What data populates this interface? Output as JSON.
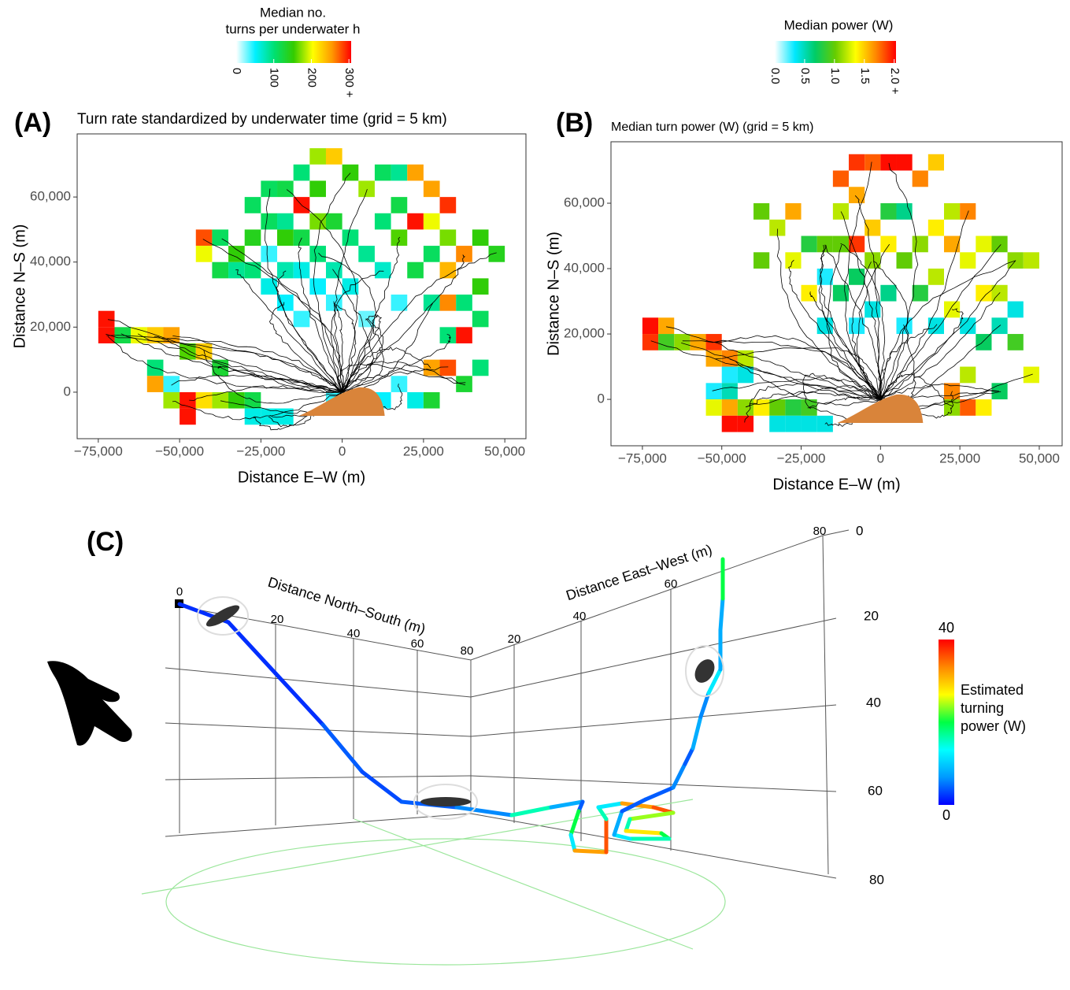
{
  "chart_data": [
    {
      "type": "heatmap",
      "panel_label": "(A)",
      "title": "Turn rate standardized by underwater time (grid = 5 km)",
      "xlabel": "Distance E–W (m)",
      "ylabel": "Distance N–S (m)",
      "xlim": [
        -81500,
        56500
      ],
      "ylim": [
        -14300,
        79400
      ],
      "xticks": [
        {
          "value": -75000,
          "label": "−75,000"
        },
        {
          "value": -50000,
          "label": "−50,000"
        },
        {
          "value": -25000,
          "label": "−25,000"
        },
        0,
        {
          "value": 25000,
          "label": "25,000"
        },
        {
          "value": 50000,
          "label": "50,000"
        }
      ],
      "yticks": [
        0,
        {
          "value": 20000,
          "label": "20,000"
        },
        {
          "value": 40000,
          "label": "40,000"
        },
        {
          "value": 60000,
          "label": "60,000"
        }
      ],
      "cell_size": 5000,
      "cells": [
        [
          -75000,
          15000,
          300
        ],
        [
          -75000,
          20000,
          300
        ],
        [
          -70000,
          15000,
          120
        ],
        [
          -65000,
          15000,
          200
        ],
        [
          -60000,
          15000,
          230
        ],
        [
          -55000,
          15000,
          250
        ],
        [
          -50000,
          10000,
          160
        ],
        [
          -45000,
          10000,
          230
        ],
        [
          -40000,
          5000,
          130
        ],
        [
          -60000,
          5000,
          100
        ],
        [
          -55000,
          0,
          40
        ],
        [
          -60000,
          0,
          250
        ],
        [
          -55000,
          -5000,
          180
        ],
        [
          -50000,
          -10000,
          300
        ],
        [
          -50000,
          -5000,
          300
        ],
        [
          -45000,
          -5000,
          220
        ],
        [
          -40000,
          -5000,
          180
        ],
        [
          -35000,
          -5000,
          150
        ],
        [
          -30000,
          -5000,
          120
        ],
        [
          -25000,
          -10000,
          60
        ],
        [
          -30000,
          -10000,
          60
        ],
        [
          -20000,
          -10000,
          60
        ],
        [
          -45000,
          45000,
          280
        ],
        [
          -45000,
          40000,
          200
        ],
        [
          -40000,
          45000,
          110
        ],
        [
          -40000,
          35000,
          120
        ],
        [
          -35000,
          35000,
          90
        ],
        [
          -35000,
          40000,
          150
        ],
        [
          -30000,
          55000,
          110
        ],
        [
          -30000,
          45000,
          140
        ],
        [
          -30000,
          35000,
          100
        ],
        [
          -25000,
          60000,
          110
        ],
        [
          -25000,
          50000,
          110
        ],
        [
          -25000,
          40000,
          40
        ],
        [
          -25000,
          30000,
          60
        ],
        [
          -20000,
          60000,
          120
        ],
        [
          -20000,
          50000,
          90
        ],
        [
          -20000,
          45000,
          150
        ],
        [
          -20000,
          35000,
          80
        ],
        [
          -20000,
          25000,
          50
        ],
        [
          -15000,
          65000,
          100
        ],
        [
          -15000,
          55000,
          300
        ],
        [
          -15000,
          45000,
          120
        ],
        [
          -15000,
          35000,
          60
        ],
        [
          -15000,
          20000,
          40
        ],
        [
          -10000,
          70000,
          180
        ],
        [
          -10000,
          60000,
          150
        ],
        [
          -10000,
          50000,
          170
        ],
        [
          -10000,
          40000,
          100
        ],
        [
          -10000,
          30000,
          50
        ],
        [
          -5000,
          70000,
          230
        ],
        [
          -5000,
          50000,
          130
        ],
        [
          -5000,
          35000,
          80
        ],
        [
          -5000,
          25000,
          40
        ],
        [
          0,
          65000,
          150
        ],
        [
          0,
          45000,
          100
        ],
        [
          0,
          30000,
          60
        ],
        [
          5000,
          60000,
          180
        ],
        [
          5000,
          40000,
          90
        ],
        [
          5000,
          20000,
          30
        ],
        [
          10000,
          65000,
          110
        ],
        [
          10000,
          50000,
          100
        ],
        [
          10000,
          35000,
          70
        ],
        [
          15000,
          65000,
          90
        ],
        [
          15000,
          55000,
          120
        ],
        [
          15000,
          45000,
          160
        ],
        [
          15000,
          25000,
          40
        ],
        [
          15000,
          0,
          40
        ],
        [
          20000,
          65000,
          250
        ],
        [
          20000,
          50000,
          300
        ],
        [
          20000,
          35000,
          120
        ],
        [
          20000,
          -5000,
          60
        ],
        [
          25000,
          60000,
          250
        ],
        [
          25000,
          50000,
          200
        ],
        [
          25000,
          40000,
          110
        ],
        [
          25000,
          25000,
          90
        ],
        [
          25000,
          5000,
          250
        ],
        [
          25000,
          -5000,
          130
        ],
        [
          30000,
          55000,
          290
        ],
        [
          30000,
          45000,
          170
        ],
        [
          30000,
          35000,
          240
        ],
        [
          30000,
          25000,
          260
        ],
        [
          30000,
          15000,
          100
        ],
        [
          30000,
          5000,
          280
        ],
        [
          35000,
          40000,
          260
        ],
        [
          35000,
          25000,
          100
        ],
        [
          35000,
          15000,
          300
        ],
        [
          35000,
          0,
          130
        ],
        [
          40000,
          45000,
          150
        ],
        [
          40000,
          30000,
          150
        ],
        [
          40000,
          20000,
          110
        ],
        [
          45000,
          40000,
          140
        ],
        [
          40000,
          5000,
          100
        ],
        [
          10000,
          -5000,
          50
        ],
        [
          -5000,
          -5000,
          40
        ]
      ],
      "colorbar": {
        "title": [
          "Median no.",
          "turns per underwater h"
        ],
        "colors": [
          "#ffffff",
          "#00f0ff",
          "#00e070",
          "#33cc00",
          "#ffff00",
          "#ff9900",
          "#ff0000"
        ],
        "lim": [
          0,
          306
        ],
        "ticks": [
          0,
          100,
          200,
          {
            "value": 300,
            "label": "300 +"
          }
        ]
      }
    },
    {
      "type": "heatmap",
      "panel_label": "(B)",
      "title": "Median turn power (W) (grid = 5 km)",
      "xlabel": "Distance E–W (m)",
      "ylabel": "Distance N–S (m)",
      "xlim": [
        -84900,
        57200
      ],
      "ylim": [
        -14200,
        78800
      ],
      "xticks": [
        {
          "value": -75000,
          "label": "−75,000"
        },
        {
          "value": -50000,
          "label": "−50,000"
        },
        {
          "value": -25000,
          "label": "−25,000"
        },
        0,
        {
          "value": 25000,
          "label": "25,000"
        },
        {
          "value": 50000,
          "label": "50,000"
        }
      ],
      "yticks": [
        0,
        {
          "value": 20000,
          "label": "20,000"
        },
        {
          "value": 40000,
          "label": "40,000"
        },
        {
          "value": 60000,
          "label": "60,000"
        }
      ],
      "cell_size": 5000,
      "cells": [
        [
          -75000,
          20000,
          2.0
        ],
        [
          -75000,
          15000,
          1.9
        ],
        [
          -70000,
          20000,
          1.6
        ],
        [
          -70000,
          15000,
          0.9
        ],
        [
          -65000,
          15000,
          1.1
        ],
        [
          -60000,
          15000,
          1.6
        ],
        [
          -55000,
          15000,
          1.9
        ],
        [
          -55000,
          10000,
          1.6
        ],
        [
          -50000,
          10000,
          1.7
        ],
        [
          -45000,
          10000,
          1.2
        ],
        [
          -50000,
          5000,
          0.3
        ],
        [
          -45000,
          5000,
          0.4
        ],
        [
          -55000,
          0,
          0.3
        ],
        [
          -50000,
          0,
          0.5
        ],
        [
          -55000,
          -5000,
          1.3
        ],
        [
          -50000,
          -5000,
          1.6
        ],
        [
          -45000,
          -5000,
          1.1
        ],
        [
          -40000,
          -5000,
          1.4
        ],
        [
          -35000,
          -5000,
          1.0
        ],
        [
          -30000,
          -5000,
          0.8
        ],
        [
          -50000,
          -10000,
          2.0
        ],
        [
          -45000,
          -10000,
          2.0
        ],
        [
          -35000,
          -10000,
          0.4
        ],
        [
          -30000,
          -10000,
          0.4
        ],
        [
          -25000,
          -10000,
          0.4
        ],
        [
          -20000,
          -10000,
          0.4
        ],
        [
          -25000,
          -5000,
          0.9
        ],
        [
          -40000,
          55000,
          1.0
        ],
        [
          -35000,
          50000,
          1.2
        ],
        [
          -40000,
          40000,
          1.0
        ],
        [
          -30000,
          55000,
          1.6
        ],
        [
          -30000,
          40000,
          1.3
        ],
        [
          -25000,
          45000,
          0.8
        ],
        [
          -25000,
          30000,
          1.4
        ],
        [
          -20000,
          45000,
          1.0
        ],
        [
          -20000,
          35000,
          0.3
        ],
        [
          -20000,
          20000,
          0.4
        ],
        [
          -15000,
          65000,
          1.8
        ],
        [
          -15000,
          55000,
          1.2
        ],
        [
          -15000,
          45000,
          1.0
        ],
        [
          -15000,
          30000,
          0.7
        ],
        [
          -10000,
          70000,
          1.9
        ],
        [
          -10000,
          60000,
          1.6
        ],
        [
          -10000,
          45000,
          1.9
        ],
        [
          -10000,
          35000,
          0.7
        ],
        [
          -10000,
          20000,
          0.3
        ],
        [
          -5000,
          70000,
          1.8
        ],
        [
          -5000,
          50000,
          1.5
        ],
        [
          -5000,
          40000,
          1.1
        ],
        [
          -5000,
          25000,
          0.4
        ],
        [
          0,
          70000,
          2.0
        ],
        [
          0,
          55000,
          0.8
        ],
        [
          0,
          45000,
          1.4
        ],
        [
          0,
          30000,
          0.6
        ],
        [
          5000,
          70000,
          2.0
        ],
        [
          5000,
          55000,
          0.6
        ],
        [
          5000,
          40000,
          1.0
        ],
        [
          5000,
          20000,
          0.3
        ],
        [
          10000,
          65000,
          1.7
        ],
        [
          10000,
          45000,
          1.1
        ],
        [
          10000,
          30000,
          0.8
        ],
        [
          15000,
          70000,
          1.5
        ],
        [
          15000,
          50000,
          1.4
        ],
        [
          15000,
          35000,
          1.2
        ],
        [
          15000,
          20000,
          0.4
        ],
        [
          20000,
          55000,
          1.2
        ],
        [
          20000,
          45000,
          1.6
        ],
        [
          20000,
          25000,
          1.3
        ],
        [
          20000,
          0,
          1.7
        ],
        [
          20000,
          -5000,
          1.1
        ],
        [
          25000,
          55000,
          1.7
        ],
        [
          25000,
          40000,
          1.3
        ],
        [
          25000,
          20000,
          0.4
        ],
        [
          25000,
          5000,
          1.2
        ],
        [
          25000,
          -5000,
          1.8
        ],
        [
          30000,
          45000,
          1.3
        ],
        [
          30000,
          30000,
          1.4
        ],
        [
          30000,
          15000,
          0.7
        ],
        [
          30000,
          -5000,
          1.4
        ],
        [
          35000,
          45000,
          1.0
        ],
        [
          35000,
          30000,
          1.2
        ],
        [
          35000,
          20000,
          0.5
        ],
        [
          35000,
          0,
          0.7
        ],
        [
          40000,
          40000,
          1.1
        ],
        [
          40000,
          25000,
          0.4
        ],
        [
          40000,
          15000,
          0.9
        ],
        [
          45000,
          40000,
          1.2
        ],
        [
          45000,
          5000,
          1.3
        ]
      ],
      "colorbar": {
        "title": [
          "Median power (W)"
        ],
        "colors": [
          "#ffffff",
          "#00e8ff",
          "#00cc66",
          "#66cc00",
          "#ffff00",
          "#ff8800",
          "#ff0000"
        ],
        "lim": [
          0,
          2.03
        ],
        "ticks": [
          {
            "value": 0,
            "label": "0.0"
          },
          {
            "value": 0.5,
            "label": "0.5"
          },
          {
            "value": 1,
            "label": "1.0"
          },
          {
            "value": 1.5,
            "label": "1.5"
          },
          {
            "value": 2,
            "label": "2.0 +"
          }
        ]
      }
    },
    {
      "type": "track3d",
      "panel_label": "(C)",
      "ns_label": "Distance North–South (m)",
      "ew_label": "Distance East–West (m)",
      "ns_ticks": [
        0,
        20,
        40,
        60,
        80
      ],
      "ew_ticks": [
        20,
        40,
        60,
        80
      ],
      "depth_ticks": [
        0,
        20,
        40,
        60,
        80
      ],
      "colorbar": {
        "title": [
          "Estimated",
          "turning",
          "power (W)"
        ],
        "colors": [
          "#0000ff",
          "#0099ff",
          "#00ffff",
          "#00ff44",
          "#ffff00",
          "#ff8800",
          "#ff0000"
        ],
        "lim": [
          0,
          40
        ],
        "ticks": [
          0,
          40
        ]
      }
    }
  ]
}
